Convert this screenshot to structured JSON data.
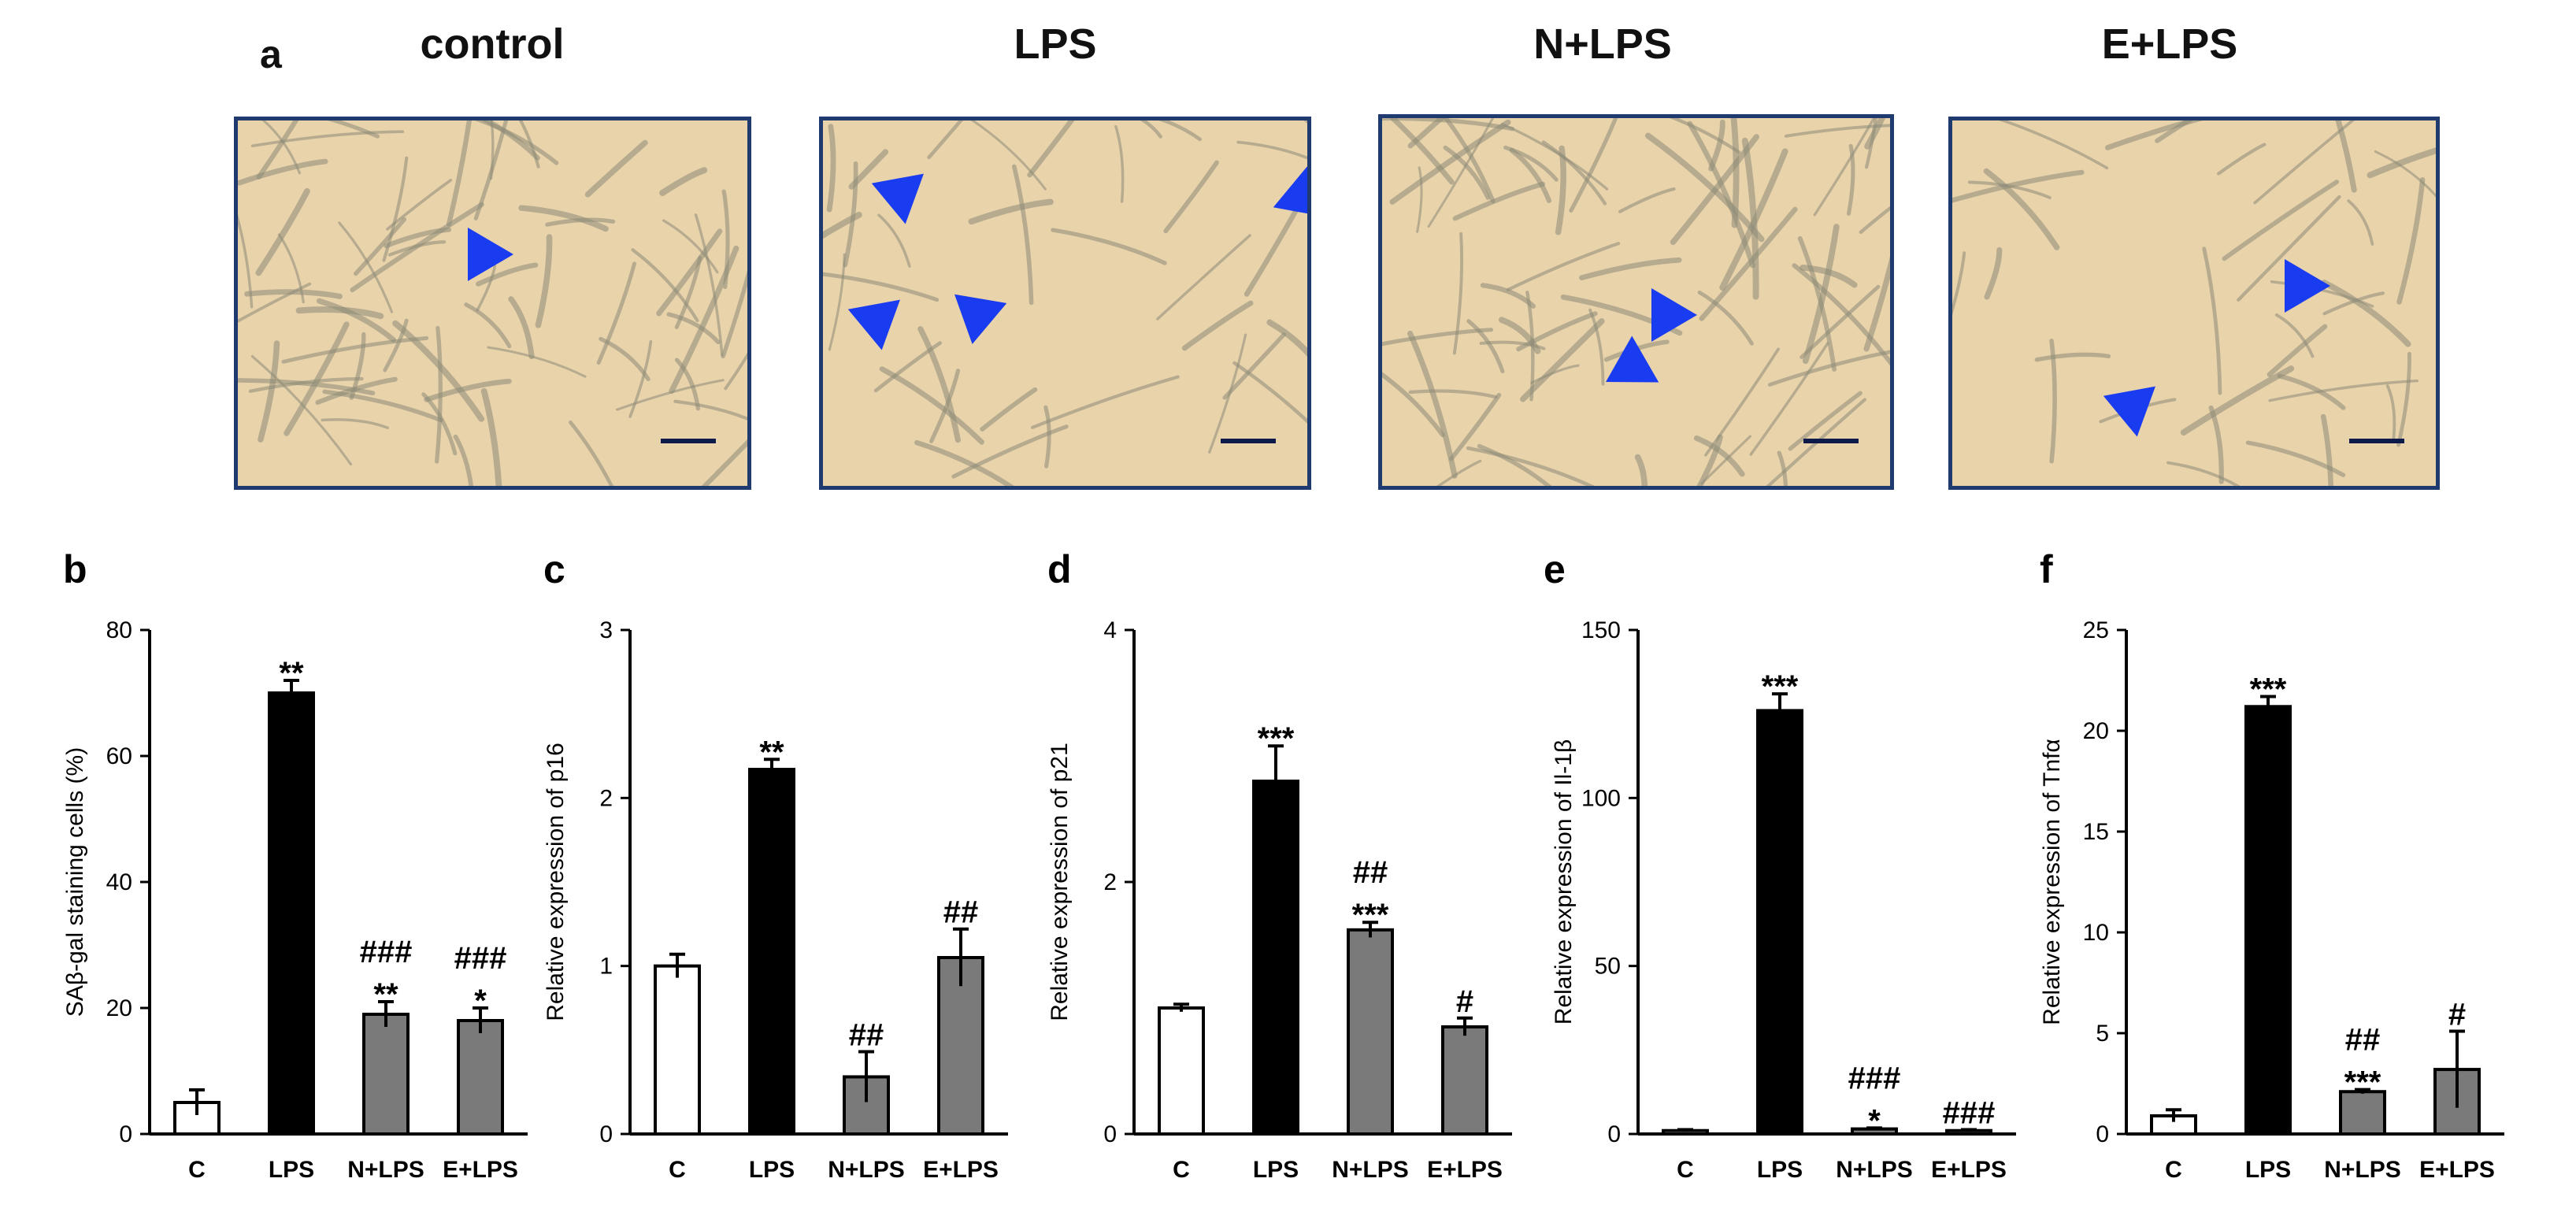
{
  "figure": {
    "panel_a_letter": "a",
    "conditions": [
      "control",
      "LPS",
      "N+LPS",
      "E+LPS"
    ]
  },
  "colors": {
    "frame": "#1e3a6e",
    "arrow": "#1a3cf0",
    "bg_cells": "#e9d3ab",
    "bar_black": "#000000",
    "bar_grey": "#7a7a7a",
    "bar_white": "#ffffff"
  },
  "micrographs": [
    {
      "condition": "control",
      "arrow_count": 1
    },
    {
      "condition": "LPS",
      "arrow_count": 4
    },
    {
      "condition": "N+LPS",
      "arrow_count": 2
    },
    {
      "condition": "E+LPS",
      "arrow_count": 2
    }
  ],
  "chart_data": [
    {
      "panel": "b",
      "type": "bar",
      "categories": [
        "C",
        "LPS",
        "N+LPS",
        "E+LPS"
      ],
      "values": [
        5,
        70,
        19,
        18
      ],
      "errors": [
        2,
        2,
        2,
        2
      ],
      "ylabel": "SAβ-gal staining cells (%)",
      "ylim": [
        0,
        80
      ],
      "yticks": [
        "0",
        "20",
        "40",
        "60",
        "80"
      ],
      "fills": [
        "white",
        "black",
        "grey",
        "grey"
      ],
      "annotations": [
        [
          "",
          ""
        ],
        [
          "",
          "**"
        ],
        [
          "###",
          "**"
        ],
        [
          "###",
          "*"
        ]
      ]
    },
    {
      "panel": "c",
      "type": "bar",
      "categories": [
        "C",
        "LPS",
        "N+LPS",
        "E+LPS"
      ],
      "values": [
        1.0,
        2.17,
        0.34,
        1.05
      ],
      "errors": [
        0.07,
        0.06,
        0.15,
        0.17
      ],
      "ylabel": "Relative expression of p16",
      "ylim": [
        0,
        3
      ],
      "yticks": [
        "0",
        "1",
        "2",
        "3"
      ],
      "fills": [
        "white",
        "black",
        "grey",
        "grey"
      ],
      "annotations": [
        [
          "",
          ""
        ],
        [
          "",
          "**"
        ],
        [
          "##",
          ""
        ],
        [
          "##",
          ""
        ]
      ]
    },
    {
      "panel": "d",
      "type": "bar",
      "categories": [
        "C",
        "LPS",
        "N+LPS",
        "E+LPS"
      ],
      "values": [
        1.0,
        2.8,
        1.62,
        0.85
      ],
      "errors": [
        0.03,
        0.28,
        0.06,
        0.07
      ],
      "ylabel": "Relative expression of p21",
      "ylim": [
        0,
        4
      ],
      "yticks": [
        "0",
        "2",
        "4"
      ],
      "fills": [
        "white",
        "black",
        "grey",
        "grey"
      ],
      "annotations": [
        [
          "",
          ""
        ],
        [
          "",
          "***"
        ],
        [
          "##",
          "***"
        ],
        [
          "#",
          ""
        ]
      ]
    },
    {
      "panel": "e",
      "type": "bar",
      "categories": [
        "C",
        "LPS",
        "N+LPS",
        "E+LPS"
      ],
      "values": [
        1,
        126,
        1.5,
        1
      ],
      "errors": [
        0.3,
        5,
        0.3,
        0.3
      ],
      "ylabel": "Relative expression of Il-1β",
      "ylim": [
        0,
        150
      ],
      "yticks": [
        "0",
        "50",
        "100",
        "150"
      ],
      "fills": [
        "white",
        "black",
        "grey",
        "grey"
      ],
      "annotations": [
        [
          "",
          ""
        ],
        [
          "",
          "***"
        ],
        [
          "###",
          "*"
        ],
        [
          "###",
          ""
        ]
      ]
    },
    {
      "panel": "f",
      "type": "bar",
      "categories": [
        "C",
        "LPS",
        "N+LPS",
        "E+LPS"
      ],
      "values": [
        0.9,
        21.2,
        2.1,
        3.2
      ],
      "errors": [
        0.3,
        0.5,
        0.1,
        1.9
      ],
      "ylabel": "Relative expression of Tnfα",
      "ylim": [
        0,
        25
      ],
      "yticks": [
        "0",
        "5",
        "10",
        "15",
        "20",
        "25"
      ],
      "fills": [
        "white",
        "black",
        "grey",
        "grey"
      ],
      "annotations": [
        [
          "",
          ""
        ],
        [
          "",
          "***"
        ],
        [
          "##",
          "***"
        ],
        [
          "#",
          ""
        ]
      ]
    }
  ]
}
